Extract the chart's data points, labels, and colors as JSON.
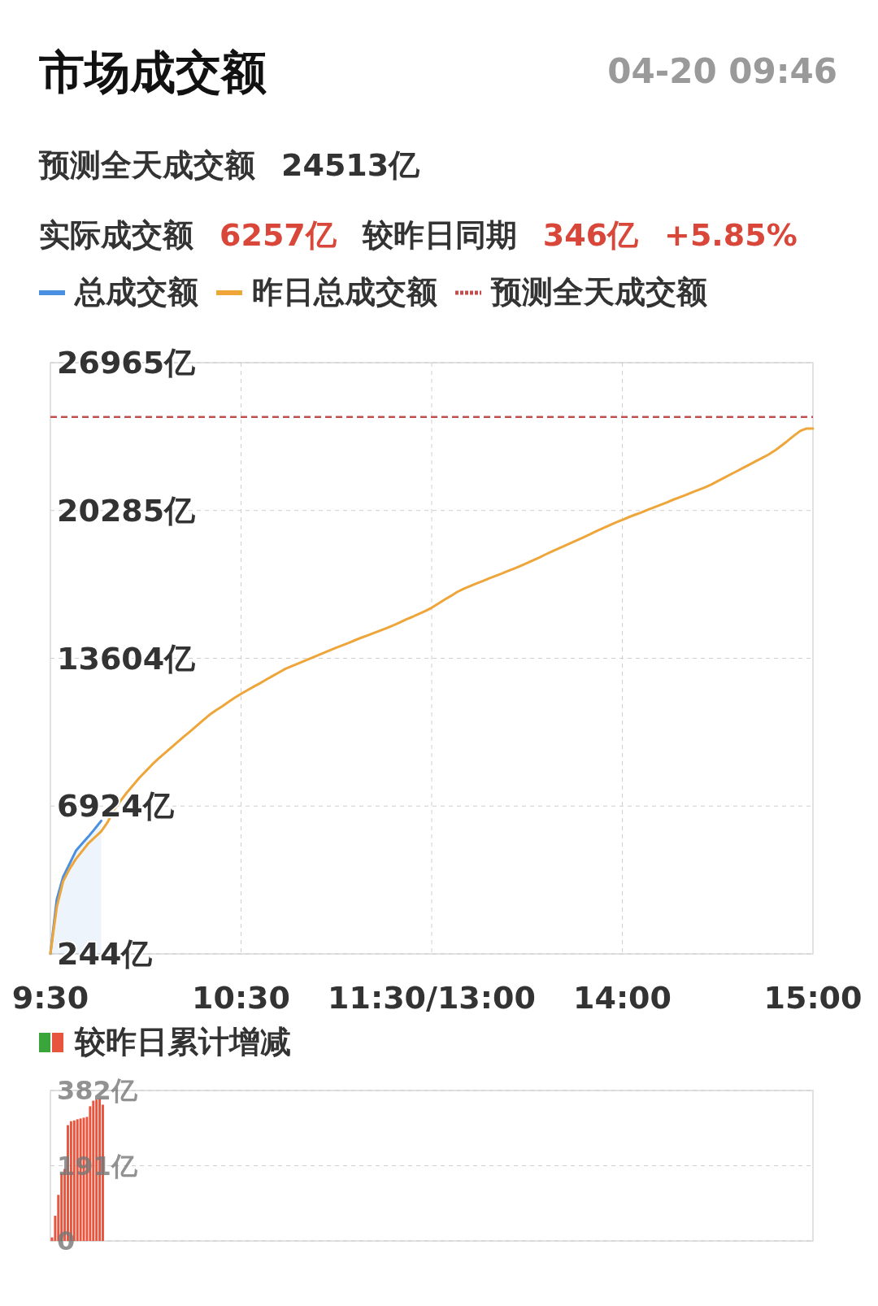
{
  "chart_data": [
    {
      "type": "line",
      "title": "市场成交额",
      "subtitle": "04-20 09:46",
      "annotations": [
        "预测全天成交额",
        "24513亿",
        "实际成交额",
        "6257亿",
        "较昨日同期",
        "346亿",
        "+5.85%"
      ],
      "categories": [
        "9:30",
        null,
        null,
        null,
        null,
        null,
        null,
        null,
        null,
        null,
        null,
        null,
        null,
        null,
        null,
        null,
        null,
        null,
        null,
        null,
        null,
        null,
        null,
        null,
        null,
        null,
        null,
        null,
        null,
        null,
        "10:30",
        null,
        null,
        null,
        null,
        null,
        null,
        null,
        null,
        null,
        null,
        null,
        null,
        null,
        null,
        null,
        null,
        null,
        null,
        null,
        null,
        null,
        null,
        null,
        null,
        null,
        null,
        null,
        null,
        null,
        "11:30/13:00",
        null,
        null,
        null,
        null,
        null,
        null,
        null,
        null,
        null,
        null,
        null,
        null,
        null,
        null,
        null,
        null,
        null,
        null,
        null,
        null,
        null,
        null,
        null,
        null,
        null,
        null,
        null,
        null,
        null,
        "14:00",
        null,
        null,
        null,
        null,
        null,
        null,
        null,
        null,
        null,
        null,
        null,
        null,
        null,
        null,
        null,
        null,
        null,
        null,
        null,
        null,
        null,
        null,
        null,
        null,
        null,
        null,
        null,
        null,
        null,
        "15:00"
      ],
      "ylim": [
        244,
        26965
      ],
      "yticks": [
        {
          "value": 244,
          "label": "244亿"
        },
        {
          "value": 6924,
          "label": "6924亿"
        },
        {
          "value": 13604,
          "label": "13604亿"
        },
        {
          "value": 20285,
          "label": "20285亿"
        },
        {
          "value": 26965,
          "label": "26965亿"
        }
      ],
      "series": [
        {
          "name": "总成交额",
          "type": "area",
          "color": "#4a8fe0",
          "values": [
            250,
            2700,
            3720,
            4310,
            4900,
            5230,
            5550,
            5900,
            6257,
            null,
            null,
            null,
            null,
            null,
            null,
            null,
            null,
            null,
            null,
            null,
            null,
            null,
            null,
            null,
            null,
            null,
            null,
            null,
            null,
            null,
            null,
            null,
            null,
            null,
            null,
            null,
            null,
            null,
            null,
            null,
            null,
            null,
            null,
            null,
            null,
            null,
            null,
            null,
            null,
            null,
            null,
            null,
            null,
            null,
            null,
            null,
            null,
            null,
            null,
            null,
            null,
            null,
            null,
            null,
            null,
            null,
            null,
            null,
            null,
            null,
            null,
            null,
            null,
            null,
            null,
            null,
            null,
            null,
            null,
            null,
            null,
            null,
            null,
            null,
            null,
            null,
            null,
            null,
            null,
            null,
            null,
            null,
            null,
            null,
            null,
            null,
            null,
            null,
            null,
            null,
            null,
            null,
            null,
            null,
            null,
            null,
            null,
            null,
            null,
            null,
            null,
            null,
            null,
            null,
            null,
            null,
            null,
            null,
            null,
            null,
            null
          ]
        },
        {
          "name": "昨日总成交额",
          "color": "#eea53a",
          "values": [
            250,
            2350,
            3520,
            4080,
            4530,
            4890,
            5250,
            5510,
            5780,
            6190,
            6750,
            7150,
            7520,
            7860,
            8200,
            8500,
            8800,
            9070,
            9320,
            9570,
            9810,
            10060,
            10300,
            10550,
            10800,
            11040,
            11240,
            11430,
            11630,
            11820,
            12000,
            12160,
            12320,
            12480,
            12650,
            12810,
            12970,
            13130,
            13250,
            13370,
            13490,
            13610,
            13730,
            13850,
            13970,
            14090,
            14200,
            14310,
            14430,
            14540,
            14650,
            14760,
            14870,
            14980,
            15100,
            15230,
            15360,
            15480,
            15610,
            15740,
            15890,
            16070,
            16250,
            16420,
            16600,
            16740,
            16860,
            16980,
            17090,
            17210,
            17320,
            17430,
            17550,
            17660,
            17780,
            17910,
            18040,
            18170,
            18310,
            18440,
            18570,
            18700,
            18830,
            18960,
            19090,
            19220,
            19360,
            19490,
            19620,
            19750,
            19860,
            19980,
            20090,
            20200,
            20320,
            20430,
            20540,
            20650,
            20770,
            20880,
            20990,
            21110,
            21220,
            21330,
            21460,
            21610,
            21760,
            21910,
            22060,
            22210,
            22360,
            22510,
            22660,
            22810,
            22990,
            23210,
            23430,
            23660,
            23880,
            23990,
            23990
          ]
        }
      ],
      "ref_lines": [
        {
          "axis": "y",
          "value": 24513,
          "label": "预测全天成交额",
          "color": "#c0504d",
          "line_style": "dashed"
        }
      ],
      "grid": true,
      "legend": "top"
    },
    {
      "type": "bar",
      "categories": [
        null,
        null,
        null,
        null,
        null,
        null,
        null,
        null,
        null,
        null,
        null,
        null,
        null,
        null,
        null,
        null,
        null,
        null,
        null,
        null,
        null,
        null,
        null,
        null,
        null,
        null,
        null,
        null,
        null,
        null,
        null,
        null,
        null,
        null,
        null,
        null,
        null,
        null,
        null,
        null,
        null,
        null,
        null,
        null,
        null,
        null,
        null,
        null,
        null,
        null,
        null,
        null,
        null,
        null,
        null,
        null,
        null,
        null,
        null,
        null,
        null,
        null,
        null,
        null,
        null,
        null,
        null,
        null,
        null,
        null,
        null,
        null,
        null,
        null,
        null,
        null,
        null,
        null,
        null,
        null,
        null,
        null,
        null,
        null,
        null,
        null,
        null,
        null,
        null,
        null,
        null,
        null,
        null,
        null,
        null,
        null,
        null,
        null,
        null,
        null,
        null,
        null,
        null,
        null,
        null,
        null,
        null,
        null,
        null,
        null,
        null,
        null,
        null,
        null,
        null,
        null,
        null,
        null,
        null,
        null,
        null,
        null,
        null,
        null,
        null,
        null,
        null,
        null,
        null,
        null,
        null,
        null,
        null,
        null,
        null,
        null,
        null,
        null,
        null,
        null,
        null,
        null,
        null,
        null,
        null,
        null,
        null,
        null,
        null,
        null,
        null,
        null,
        null,
        null,
        null,
        null,
        null,
        null,
        null,
        null,
        null,
        null,
        null,
        null,
        null,
        null,
        null,
        null,
        null,
        null,
        null,
        null,
        null,
        null,
        null,
        null,
        null,
        null,
        null,
        null,
        null,
        null,
        null,
        null,
        null,
        null,
        null,
        null,
        null,
        null,
        null,
        null,
        null,
        null,
        null,
        null,
        null,
        null,
        null,
        null,
        null,
        null,
        null,
        null,
        null,
        null,
        null,
        null,
        null,
        null,
        null,
        null,
        null,
        null,
        null,
        null,
        null,
        null,
        null,
        null,
        null,
        null,
        null,
        null,
        null,
        null,
        null,
        null,
        null,
        null,
        null,
        null,
        null,
        null,
        null,
        null,
        null,
        null,
        null,
        null
      ],
      "ylim": [
        0,
        382
      ],
      "yticks": [
        {
          "value": 0,
          "label": "0"
        },
        {
          "value": 191,
          "label": "191亿"
        },
        {
          "value": 382,
          "label": "382亿"
        }
      ],
      "series": [
        {
          "name": "较昨日累计增减",
          "color": "#e8553f",
          "values": [
            9,
            64,
            117,
            172,
            183,
            294,
            304,
            306,
            309,
            311,
            313,
            315,
            342,
            356,
            359,
            361,
            346,
            null,
            null,
            null,
            null,
            null,
            null,
            null,
            null,
            null,
            null,
            null,
            null,
            null,
            null,
            null,
            null,
            null,
            null,
            null,
            null,
            null,
            null,
            null,
            null,
            null,
            null,
            null,
            null,
            null,
            null,
            null,
            null,
            null,
            null,
            null,
            null,
            null,
            null,
            null,
            null,
            null,
            null,
            null,
            null,
            null,
            null,
            null,
            null,
            null,
            null,
            null,
            null,
            null,
            null,
            null,
            null,
            null,
            null,
            null,
            null,
            null,
            null,
            null,
            null,
            null,
            null,
            null,
            null,
            null,
            null,
            null,
            null,
            null,
            null,
            null,
            null,
            null,
            null,
            null,
            null,
            null,
            null,
            null,
            null,
            null,
            null,
            null,
            null,
            null,
            null,
            null,
            null,
            null,
            null,
            null,
            null,
            null,
            null,
            null,
            null,
            null,
            null,
            null,
            null,
            null,
            null,
            null,
            null,
            null,
            null,
            null,
            null,
            null,
            null,
            null,
            null,
            null,
            null,
            null,
            null,
            null,
            null,
            null,
            null,
            null,
            null,
            null,
            null,
            null,
            null,
            null,
            null,
            null,
            null,
            null,
            null,
            null,
            null,
            null,
            null,
            null,
            null,
            null,
            null,
            null,
            null,
            null,
            null,
            null,
            null,
            null,
            null,
            null,
            null,
            null,
            null,
            null,
            null,
            null,
            null,
            null,
            null,
            null,
            null,
            null,
            null,
            null,
            null,
            null,
            null,
            null,
            null,
            null,
            null,
            null,
            null,
            null,
            null,
            null,
            null,
            null,
            null,
            null,
            null,
            null,
            null,
            null,
            null,
            null,
            null,
            null,
            null,
            null,
            null,
            null,
            null,
            null,
            null,
            null,
            null,
            null,
            null,
            null,
            null,
            null,
            null,
            null,
            null,
            null,
            null,
            null,
            null,
            null,
            null,
            null,
            null,
            null,
            null,
            null,
            null,
            null,
            null,
            null
          ]
        }
      ],
      "grid": "y",
      "legend": "top left",
      "tick_labels": "y"
    }
  ]
}
